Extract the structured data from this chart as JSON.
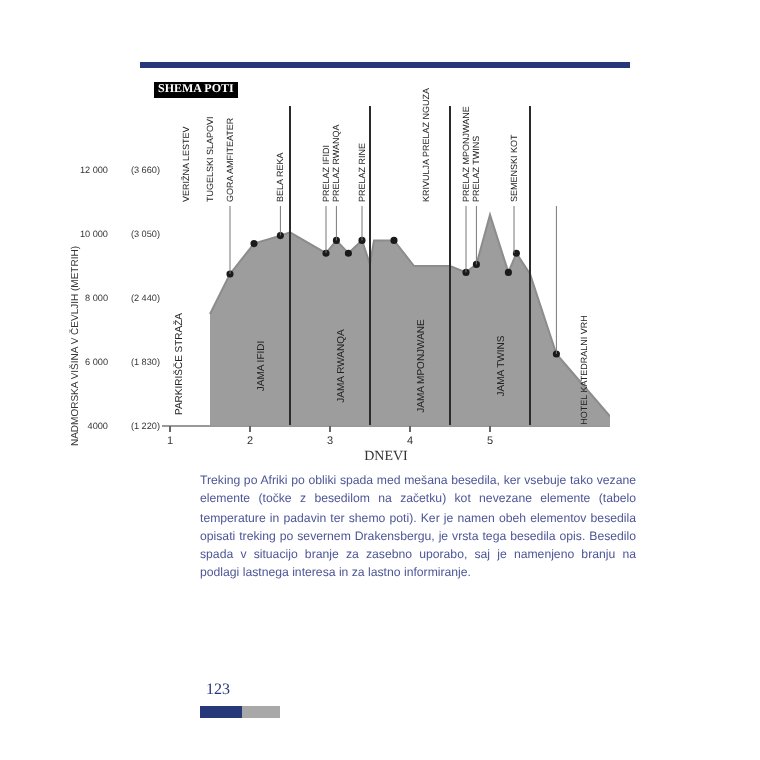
{
  "chart_data": {
    "type": "area",
    "title": "SHEMA POTI",
    "xlabel": "DNEVI",
    "ylabel": "NADMORSKA VIŠINA V ČEVLJIH (METRIH)",
    "xlim": [
      0.4,
      6.0
    ],
    "xticks": [
      {
        "value": 0.5,
        "label": "1"
      },
      {
        "value": 1.5,
        "label": "2"
      },
      {
        "value": 2.5,
        "label": "3"
      },
      {
        "value": 3.5,
        "label": "4"
      },
      {
        "value": 4.5,
        "label": "5"
      }
    ],
    "ylim": [
      4000,
      14000
    ],
    "yticks": [
      4000,
      {
        "value": 6000,
        "label": "6 000"
      },
      {
        "value": 8000,
        "label": "8 000"
      },
      {
        "value": 10000,
        "label": "10 000"
      },
      {
        "value": 12000,
        "label": "12 000"
      }
    ],
    "y2lim": [
      1220,
      4267
    ],
    "y2ticks": [
      {
        "value": 1220,
        "label": "(1 220)"
      },
      {
        "value": 1830,
        "label": "(1 830)"
      },
      {
        "value": 2440,
        "label": "(2 440)"
      },
      {
        "value": 3050,
        "label": "(3 050)"
      },
      {
        "value": 3660,
        "label": "(3 660)"
      }
    ],
    "series": [
      {
        "color": "#8c8c8c",
        "x": [
          1.0,
          1.25,
          1.55,
          1.88,
          2.0,
          2.45,
          2.58,
          2.73,
          2.9,
          3.0,
          3.05,
          3.3,
          3.55,
          4.0,
          4.2,
          4.33,
          4.5,
          4.73,
          4.83,
          5.0,
          5.33,
          6.0
        ],
        "values": [
          7500,
          8750,
          9700,
          9950,
          10050,
          9400,
          9800,
          9400,
          9800,
          9050,
          9800,
          9800,
          9000,
          9000,
          8800,
          9050,
          10600,
          8800,
          9400,
          8750,
          6250,
          4300
        ]
      },
      {
        "type": "scatter",
        "marker": "circle",
        "color": "#1a1a1a",
        "x": [
          1.25,
          1.55,
          1.88,
          2.45,
          2.58,
          2.73,
          2.9,
          3.3,
          4.2,
          4.33,
          4.73,
          4.83,
          5.33
        ],
        "values": [
          8750,
          9700,
          9950,
          9400,
          9800,
          9400,
          9800,
          9800,
          8800,
          9050,
          8800,
          9400,
          6250
        ]
      }
    ],
    "ref_lines": [
      {
        "axis": "x",
        "value": 2,
        "label": "JAMA IFIDI",
        "color": "#2a2a2a"
      },
      {
        "axis": "x",
        "value": 3,
        "label": "JAMA RWANQA",
        "color": "#2a2a2a"
      },
      {
        "axis": "x",
        "value": 4,
        "label": "JAMA MPONJWANE",
        "color": "#2a2a2a"
      },
      {
        "axis": "x",
        "value": 5,
        "label": "JAMA TWINS",
        "color": "#2a2a2a"
      }
    ],
    "annotations": [
      "VERIŽNA LESTEV",
      "TUGELSKI SLAPOVI",
      {
        "text": "GORA AMFITEATER",
        "x": 1.25,
        "y": 8750
      },
      {
        "text": "BELA REKA",
        "x": 1.88,
        "y": 9950
      },
      {
        "text": "PRELAZ IFIDI",
        "x": 2.45,
        "y": 9400
      },
      {
        "text": "PRELAZ RWANQA",
        "x": 2.58,
        "y": 9800
      },
      {
        "text": "PRELAZ RINE",
        "x": 2.9,
        "y": 9800
      },
      "KRIVULJA PRELAZ NGUZA",
      {
        "text": "PRELAZ MPONJWANE",
        "x": 4.2,
        "y": 8800
      },
      {
        "text": "PRELAZ TWINS",
        "x": 4.33,
        "y": 9050
      },
      {
        "text": "SEMENSKI KOT",
        "x": 4.8,
        "y": 9400
      },
      {
        "text": "HOTEL KATEDRALNI VRH",
        "x": 5.33,
        "y": 6250
      },
      "PARKIRIŠČE STRAŽA",
      "Treking po Afriki po obliki spada med mešana besedila, ker vsebuje tako vezane elemente (točke z besedilom na začetku) kot nevezane elemente (tabelo temperature in padavin ter shemo poti). Ker je namen obeh elementov besedila opisati treking po severnem Drakensbergu, je vrsta tega besedila opis. Besedilo spada v situacijo branje za zasebno uporabo, saj je namenjeno branju na podlagi lastnega interesa in za lastno informiranje.",
      "123"
    ]
  }
}
